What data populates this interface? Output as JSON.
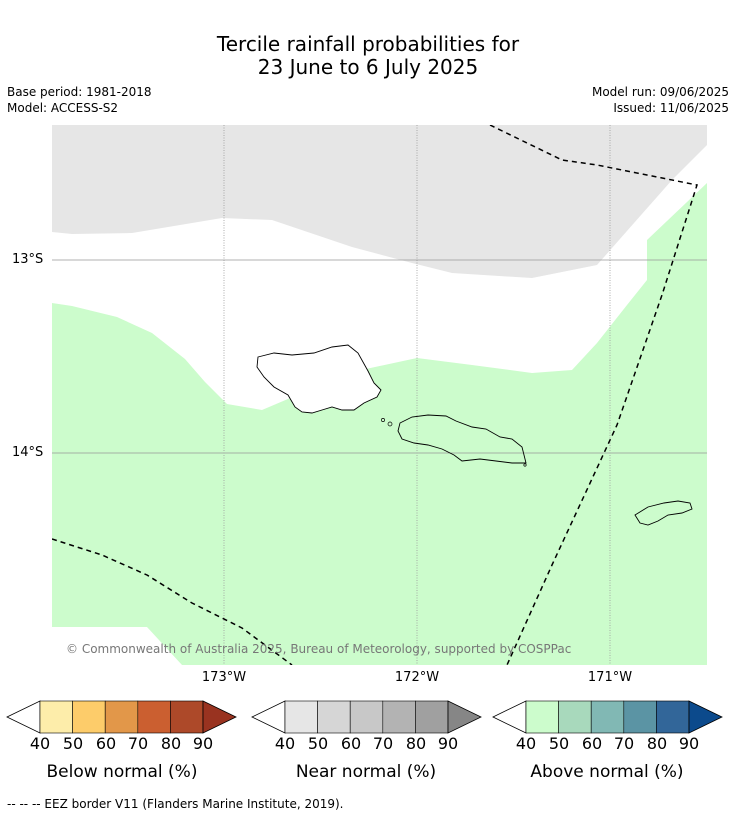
{
  "header": {
    "title_line1": "Tercile rainfall probabilities for",
    "title_line2": "23 June to 6 July 2025",
    "base_period": "Base period: 1981-2018",
    "model": "Model: ACCESS-S2",
    "model_run": "Model run: 09/06/2025",
    "issued": "Issued: 11/06/2025"
  },
  "map": {
    "lat_labels": [
      "13°S",
      "14°S"
    ],
    "lon_labels": [
      "173°W",
      "172°W",
      "171°W"
    ],
    "copyright": "© Commonwealth of Australia 2025, Bureau of Meteorology, supported by COSPPac",
    "colors": {
      "near_normal_40": "#e6e6e6",
      "above_normal_40": "#ccfccc",
      "land_outline": "#000000",
      "grid": "#999999"
    }
  },
  "colorbars": [
    {
      "title": "Below normal (%)",
      "ticks": [
        "40",
        "50",
        "60",
        "70",
        "80",
        "90"
      ],
      "colors": [
        "#fdedaa",
        "#fdcc6a",
        "#e29749",
        "#cb5f30",
        "#ad4929",
        "#993320"
      ]
    },
    {
      "title": "Near normal (%)",
      "ticks": [
        "40",
        "50",
        "60",
        "70",
        "80",
        "90"
      ],
      "colors": [
        "#e6e6e6",
        "#d6d6d6",
        "#c8c8c8",
        "#b3b3b3",
        "#a0a0a0",
        "#868686"
      ]
    },
    {
      "title": "Above normal (%)",
      "ticks": [
        "40",
        "50",
        "60",
        "70",
        "80",
        "90"
      ],
      "colors": [
        "#ccfccc",
        "#a8d9bc",
        "#81b8b4",
        "#5b94a4",
        "#326699",
        "#0c4a8c"
      ]
    }
  ],
  "footer": {
    "eez_legend": "-- -- -- EEZ border V11 (Flanders Marine Institute, 2019)."
  }
}
